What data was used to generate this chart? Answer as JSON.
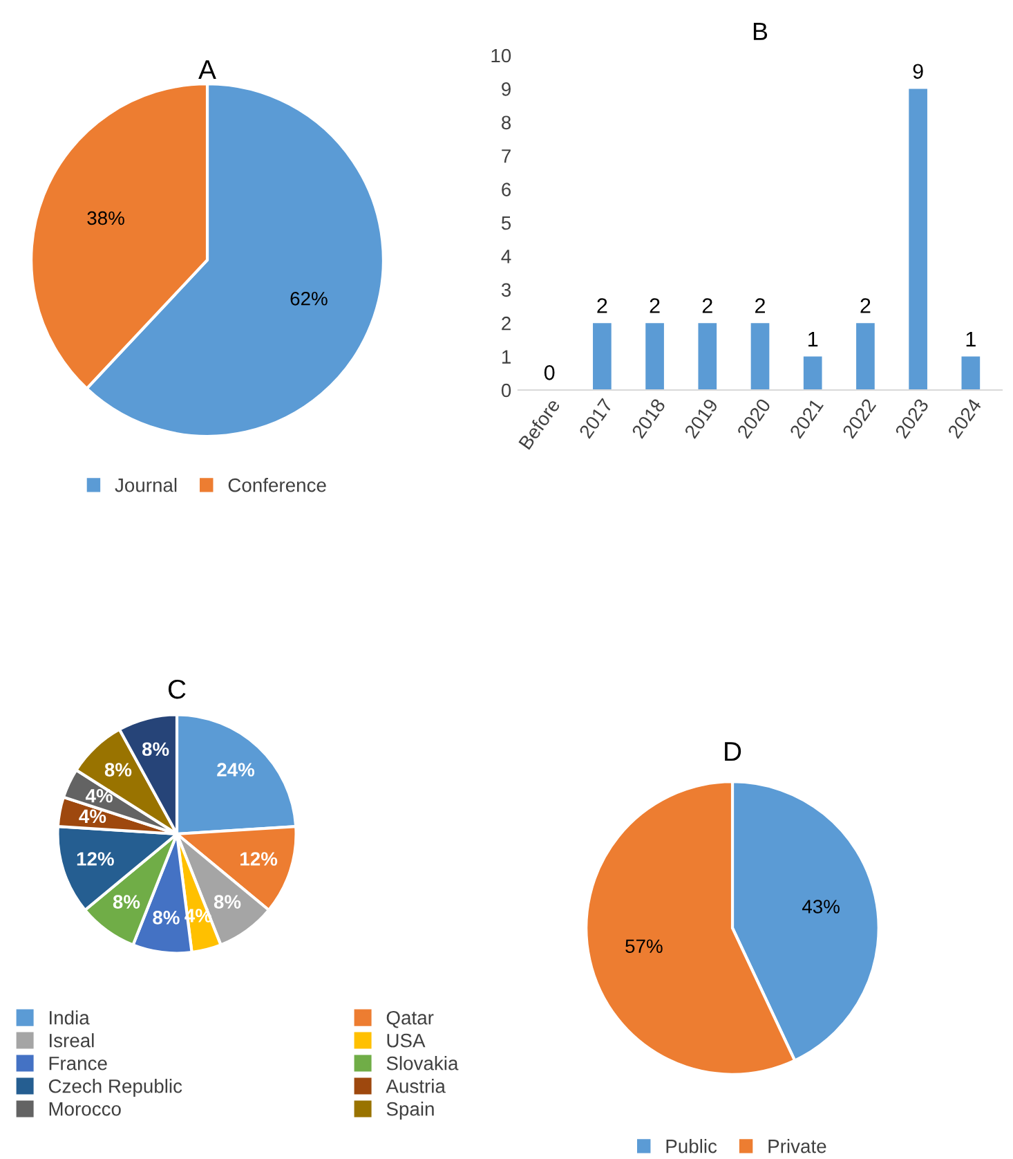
{
  "chart_data": [
    {
      "type": "pie",
      "title": "A",
      "categories": [
        "Journal",
        "Conference"
      ],
      "values": [
        62,
        38
      ],
      "colors": [
        "#5b9bd5",
        "#ed7d31"
      ],
      "value_labels": [
        "62%",
        "38%"
      ],
      "legend": "bottom"
    },
    {
      "type": "bar",
      "title": "B",
      "categories": [
        "Before",
        "2017",
        "2018",
        "2019",
        "2020",
        "2021",
        "2022",
        "2023",
        "2024"
      ],
      "values": [
        0,
        2,
        2,
        2,
        2,
        1,
        2,
        9,
        1
      ],
      "color": "#5b9bd5",
      "ylim": [
        0,
        10
      ],
      "yticks": [
        0,
        1,
        2,
        3,
        4,
        5,
        6,
        7,
        8,
        9,
        10
      ],
      "data_labels": true,
      "grid": false
    },
    {
      "type": "pie",
      "title": "C",
      "categories": [
        "India",
        "Qatar",
        "Isreal",
        "USA",
        "France",
        "Slovakia",
        "Czech Republic",
        "Austria",
        "Morocco",
        "Spain",
        null
      ],
      "values": [
        24,
        12,
        8,
        4,
        8,
        8,
        12,
        4,
        4,
        8,
        8
      ],
      "colors": [
        "#5b9bd5",
        "#ed7d31",
        "#a5a5a5",
        "#ffc000",
        "#4472c4",
        "#70ad47",
        "#255e91",
        "#9e480e",
        "#636363",
        "#997300",
        "#264478"
      ],
      "value_labels": [
        "24%",
        "12%",
        "8%",
        "4%",
        "8%",
        "8%",
        "12%",
        "4%",
        "4%",
        "8%",
        "8%"
      ],
      "legend": "bottom"
    },
    {
      "type": "pie",
      "title": "D",
      "categories": [
        "Public",
        "Private"
      ],
      "values": [
        43,
        57
      ],
      "colors": [
        "#5b9bd5",
        "#ed7d31"
      ],
      "value_labels": [
        "43%",
        "57%"
      ],
      "legend": "bottom"
    }
  ]
}
